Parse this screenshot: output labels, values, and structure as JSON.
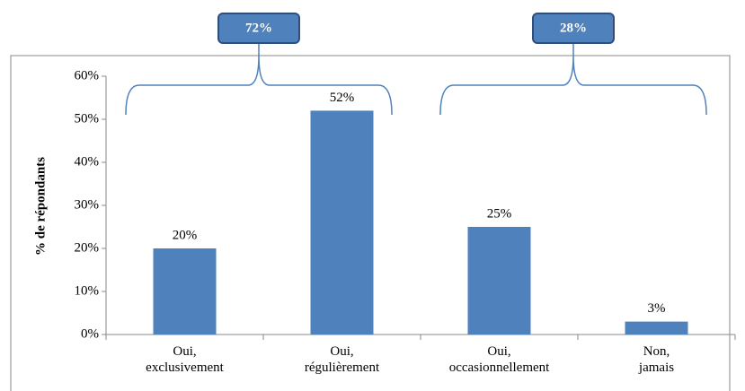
{
  "chart_data": {
    "type": "bar",
    "y_label": "% de répondants",
    "categories": [
      "Oui,\nexclusivement",
      "Oui,\nrégulièrement",
      "Oui,\noccasionnellement",
      "Non,\njamais"
    ],
    "values": [
      20,
      52,
      25,
      3
    ],
    "value_labels": [
      "20%",
      "52%",
      "25%",
      "3%"
    ],
    "color": "#4f81bd",
    "ylim": [
      0,
      60
    ],
    "yticks": [
      {
        "value": 0,
        "label": "0%"
      },
      {
        "value": 10,
        "label": "10%"
      },
      {
        "value": 20,
        "label": "20%"
      },
      {
        "value": 30,
        "label": "30%"
      },
      {
        "value": 40,
        "label": "40%"
      },
      {
        "value": 50,
        "label": "50%"
      },
      {
        "value": 60,
        "label": "60%"
      }
    ],
    "annotations": [
      {
        "value": 72,
        "label": "72%"
      },
      {
        "value": 28,
        "label": "28%"
      }
    ]
  }
}
